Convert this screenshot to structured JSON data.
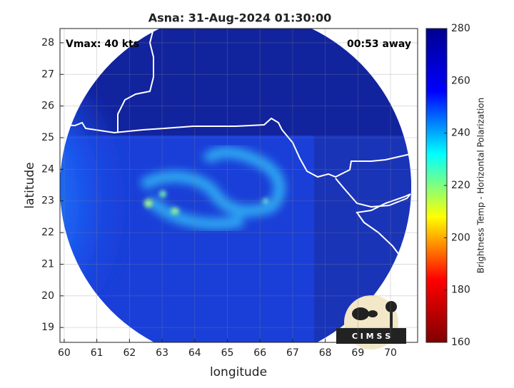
{
  "map": {
    "title": "Asna: 31-Aug-2024 01:30:00",
    "vmax_label": "Vmax: 40 kts",
    "away_label": "00:53 away",
    "xlabel": "longitude",
    "ylabel": "latitude",
    "xlim": [
      59.87,
      70.83
    ],
    "ylim": [
      18.53,
      28.45
    ],
    "xticks": [
      60,
      61,
      62,
      63,
      64,
      65,
      66,
      67,
      68,
      69,
      70
    ],
    "yticks": [
      19,
      20,
      21,
      22,
      23,
      24,
      25,
      26,
      27,
      28
    ],
    "grid": true,
    "logo_text": "C I M S S",
    "colorbar": {
      "label": "Brightness Temp - Horizontal Polarization",
      "lim": [
        160,
        280
      ],
      "ticks": [
        160,
        180,
        200,
        220,
        240,
        260,
        280
      ],
      "colormap": [
        "#800000",
        "#ff0000",
        "#ffff00",
        "#00ffff",
        "#0000ff",
        "#00008f"
      ]
    }
  }
}
